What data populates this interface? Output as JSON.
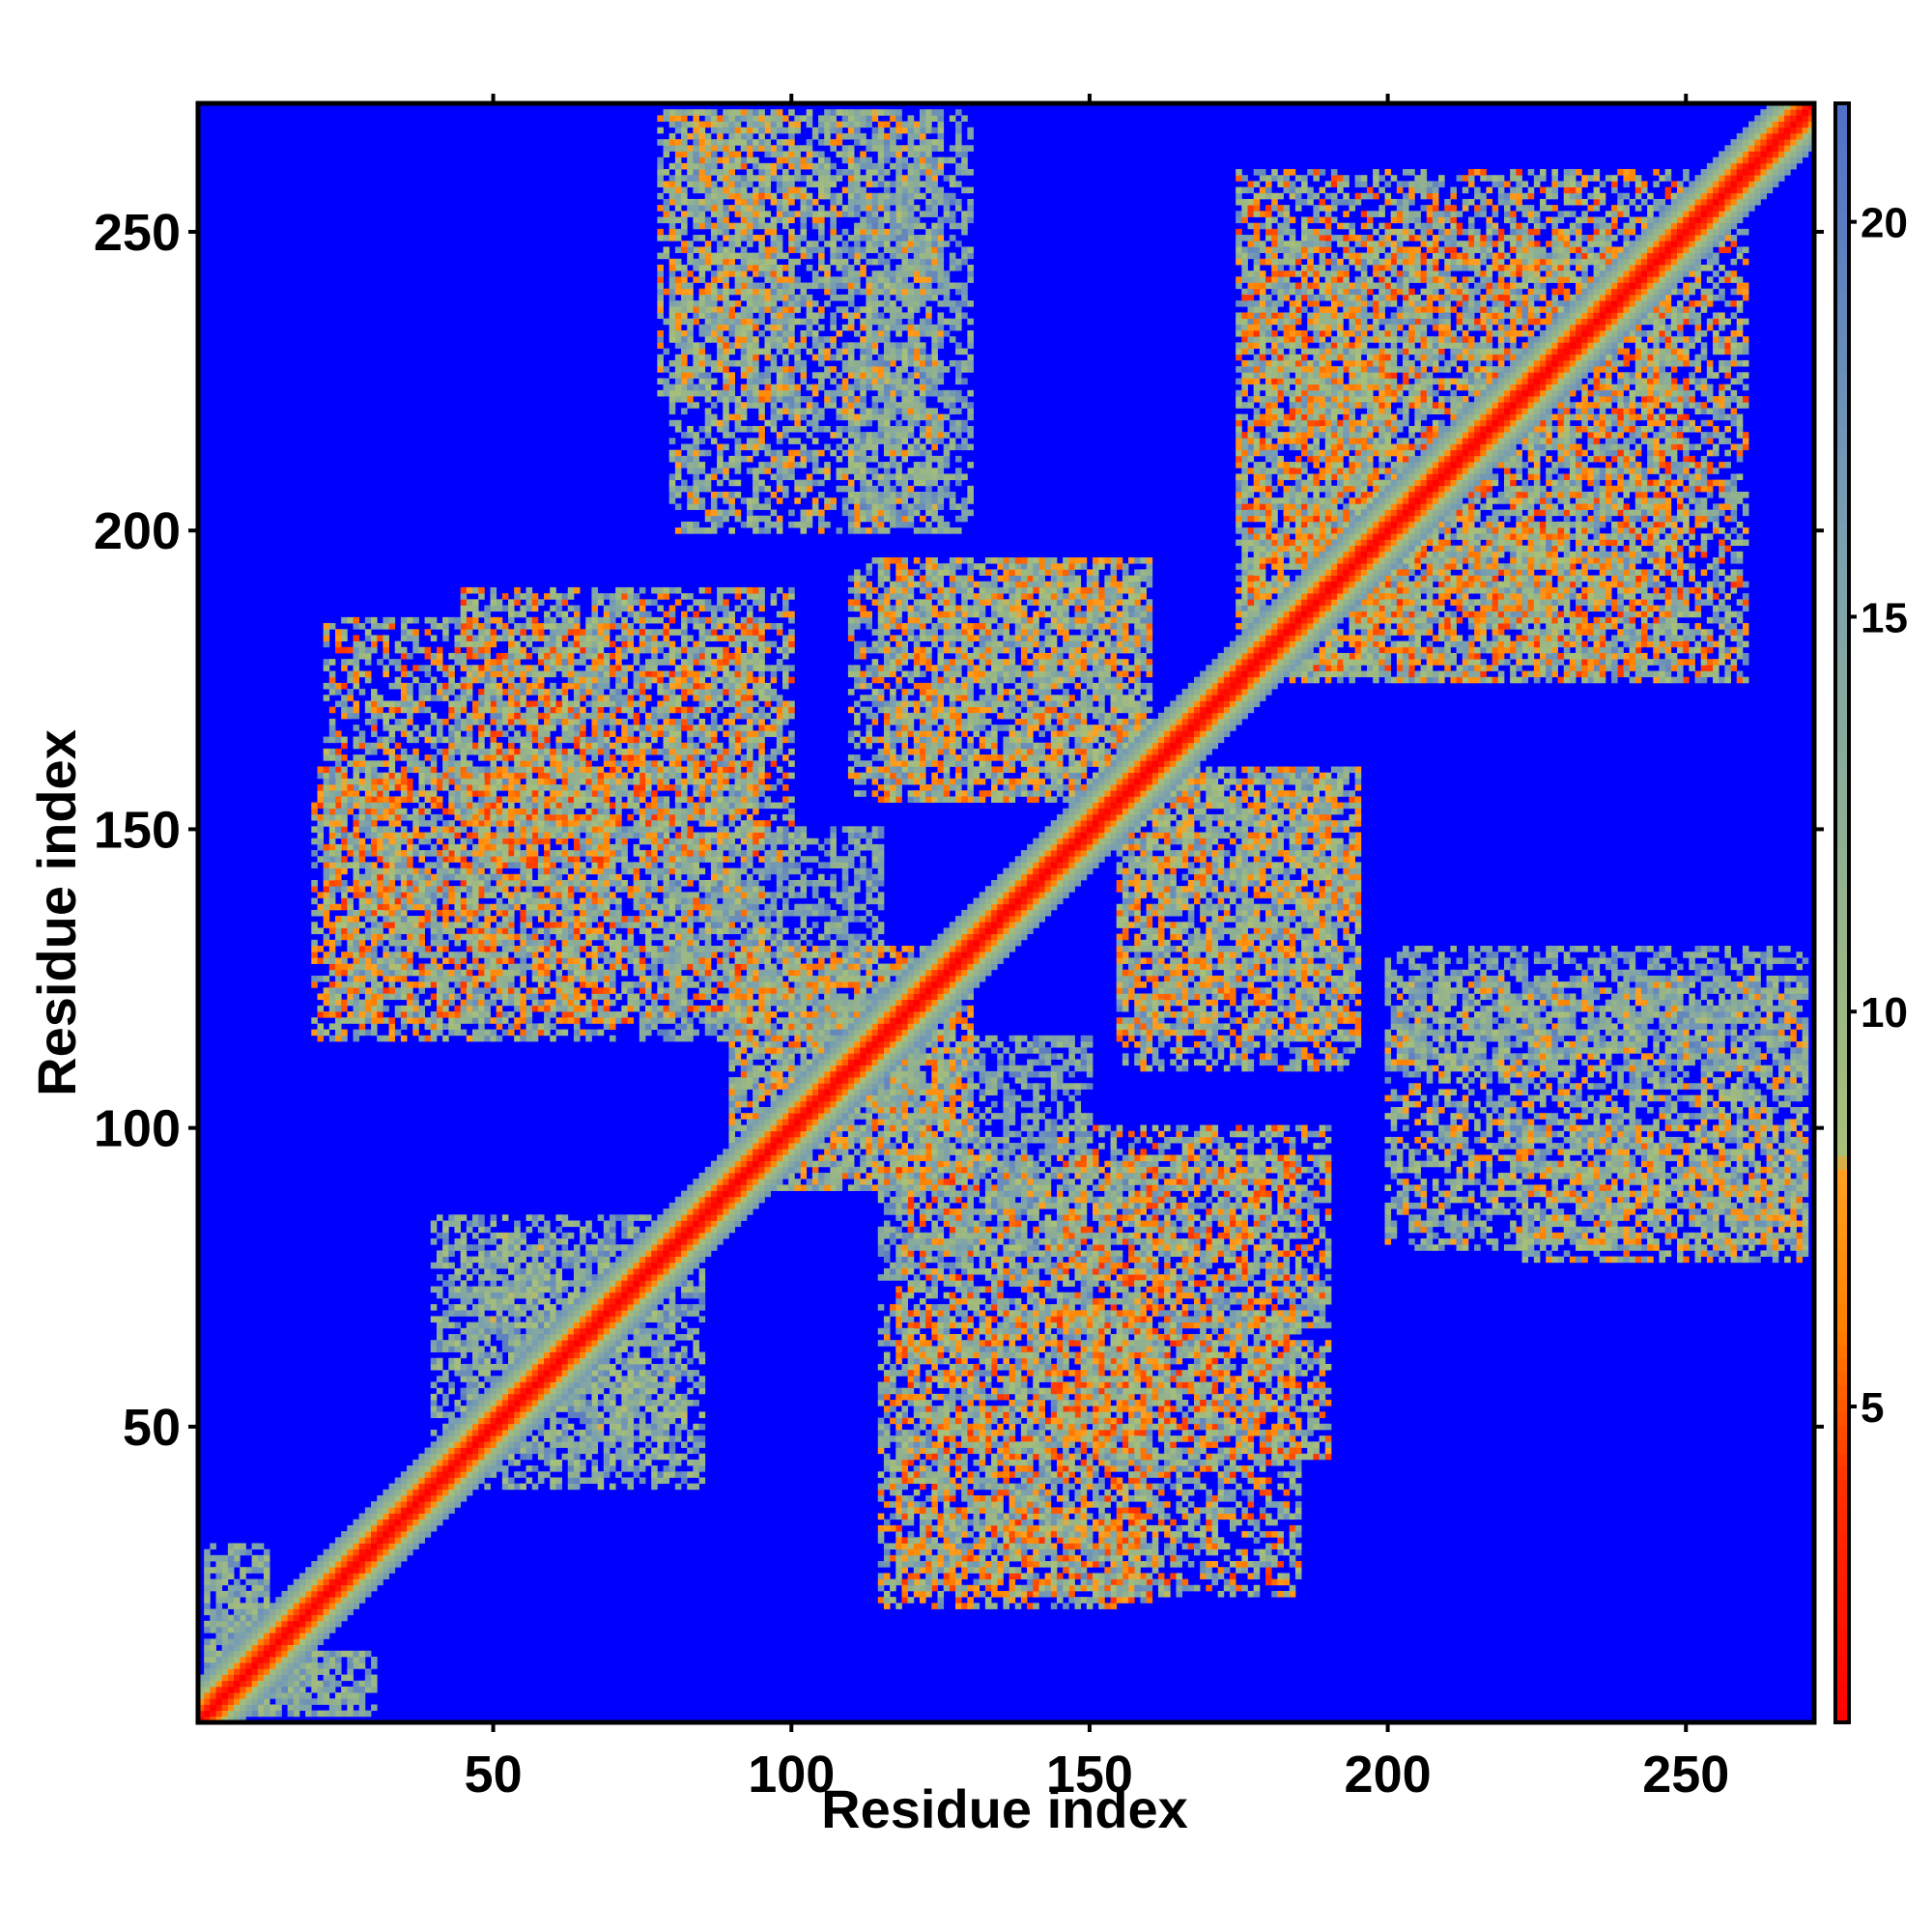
{
  "chart_data": {
    "type": "heatmap",
    "title": "",
    "xlabel": "Residue index",
    "ylabel": "Residue index",
    "xlim": [
      1,
      271
    ],
    "ylim": [
      1,
      271
    ],
    "x_ticks": [
      50,
      100,
      150,
      200,
      250
    ],
    "y_ticks": [
      50,
      100,
      150,
      200,
      250
    ],
    "x_tick_labels": [
      "50",
      "100",
      "150",
      "200",
      "250"
    ],
    "y_tick_labels": [
      "50",
      "100",
      "150",
      "200",
      "250"
    ],
    "colorbar": {
      "range": [
        1,
        21.5
      ],
      "ticks": [
        5,
        10,
        15,
        20
      ],
      "tick_labels": [
        "5",
        "10",
        "15",
        "20"
      ],
      "colors": [
        {
          "value": 1,
          "color": "#ff0000"
        },
        {
          "value": 4,
          "color": "#ff3000"
        },
        {
          "value": 6,
          "color": "#ff8000"
        },
        {
          "value": 8,
          "color": "#ffa020"
        },
        {
          "value": 8.2,
          "color": "#a8c078"
        },
        {
          "value": 12,
          "color": "#90b090"
        },
        {
          "value": 16,
          "color": "#7aa0b0"
        },
        {
          "value": 21.5,
          "color": "#5070c8"
        }
      ],
      "background_color": "#0000ff",
      "background_value": 21.5
    },
    "diagonal_band": {
      "values_by_offset": [
        1.0,
        2.5,
        4.5,
        6.5,
        9,
        11.5,
        14,
        16.5
      ]
    },
    "contact_regions": [
      {
        "x": [
          2,
          12
        ],
        "y": [
          2,
          28
        ],
        "min": 9,
        "max": 19
      },
      {
        "x": [
          2,
          30
        ],
        "y": [
          2,
          12
        ],
        "min": 9,
        "max": 19
      },
      {
        "x": [
          40,
          80
        ],
        "y": [
          45,
          85
        ],
        "min": 8,
        "max": 20
      },
      {
        "x": [
          115,
          160
        ],
        "y": [
          20,
          70
        ],
        "min": 4,
        "max": 19
      },
      {
        "x": [
          145,
          190
        ],
        "y": [
          45,
          100
        ],
        "min": 4,
        "max": 19
      },
      {
        "x": [
          90,
          130
        ],
        "y": [
          90,
          130
        ],
        "min": 5,
        "max": 19
      },
      {
        "x": [
          75,
          115
        ],
        "y": [
          115,
          150
        ],
        "min": 10,
        "max": 20
      },
      {
        "x": [
          22,
          95
        ],
        "y": [
          118,
          185
        ],
        "min": 4,
        "max": 19
      },
      {
        "x": [
          115,
          160
        ],
        "y": [
          155,
          195
        ],
        "min": 5,
        "max": 19
      },
      {
        "x": [
          155,
          195
        ],
        "y": [
          110,
          160
        ],
        "min": 5,
        "max": 19
      },
      {
        "x": [
          200,
          270
        ],
        "y": [
          80,
          125
        ],
        "min": 6,
        "max": 19
      },
      {
        "x": [
          78,
          100
        ],
        "y": [
          222,
          270
        ],
        "min": 5,
        "max": 19
      },
      {
        "x": [
          110,
          130
        ],
        "y": [
          200,
          270
        ],
        "min": 10,
        "max": 20
      },
      {
        "x": [
          175,
          250
        ],
        "y": [
          175,
          260
        ],
        "min": 4,
        "max": 19
      },
      {
        "x": [
          185,
          200
        ],
        "y": [
          185,
          230
        ],
        "min": 5,
        "max": 19
      }
    ]
  }
}
